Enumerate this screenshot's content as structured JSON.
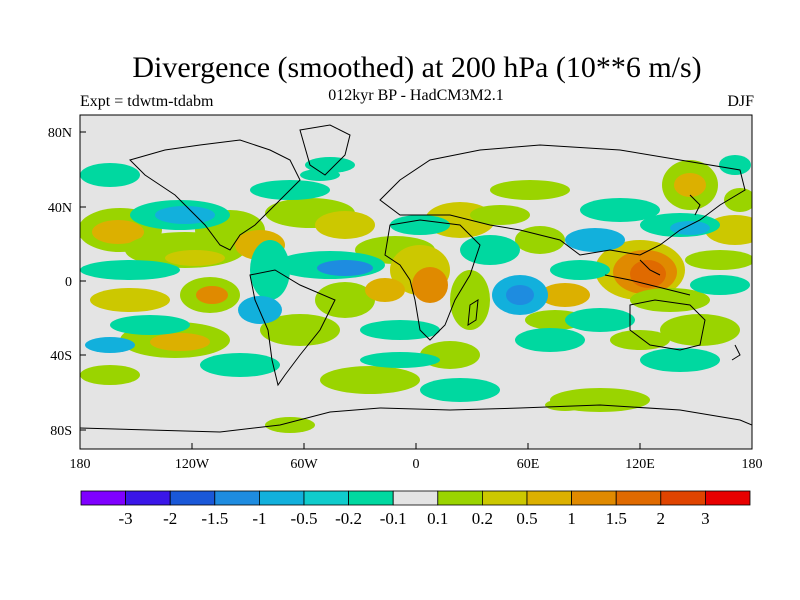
{
  "title": "Divergence (smoothed) at 200 hPa (10**6 m/s)",
  "subtitle": "012kyr BP - HadCM3M2.1",
  "experiment_label": "Expt = tdwtm-tdabm",
  "season": "DJF",
  "axes": {
    "lat_labels": [
      "80N",
      "40N",
      "0",
      "40S",
      "80S"
    ],
    "lon_labels": [
      "180",
      "120W",
      "60W",
      "0",
      "60E",
      "120E",
      "180"
    ]
  },
  "colorbar": {
    "colors": [
      "#7f00ff",
      "#3a16e8",
      "#1a58d8",
      "#1e8ce0",
      "#12b0dc",
      "#10cccc",
      "#00d8a0",
      "#e4e4e4",
      "#9ad400",
      "#ccc800",
      "#dcb000",
      "#e08a00",
      "#e06a00",
      "#e04400",
      "#e80000"
    ],
    "labels": [
      "-3",
      "-2",
      "-1.5",
      "-1",
      "-0.5",
      "-0.2",
      "-0.1",
      "0.1",
      "0.2",
      "0.5",
      "1",
      "1.5",
      "2",
      "3"
    ]
  }
}
